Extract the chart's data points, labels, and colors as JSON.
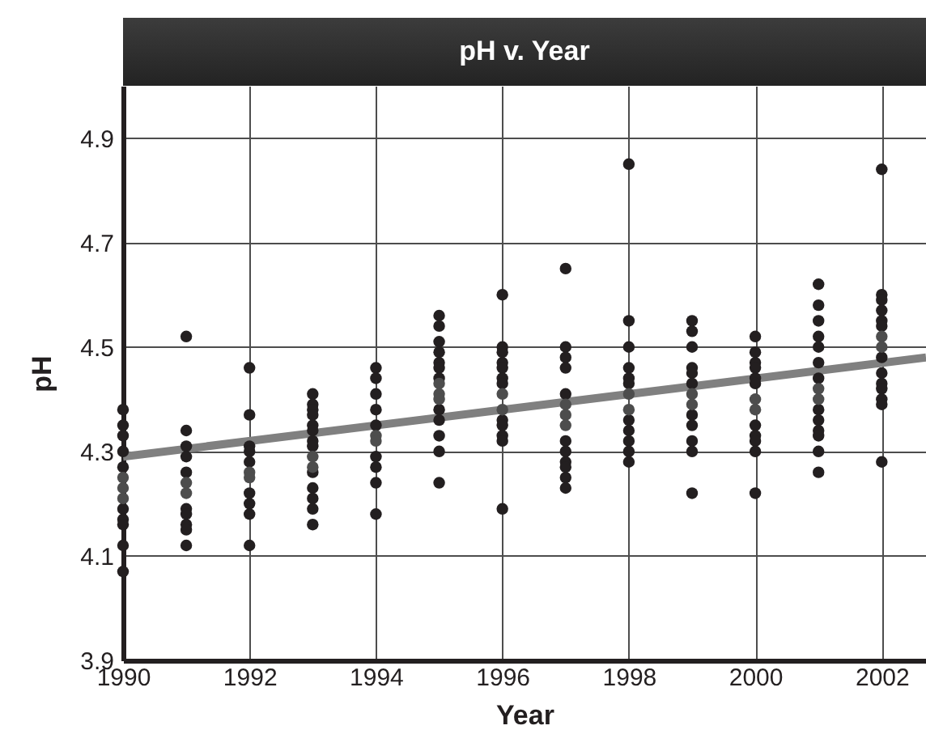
{
  "chart_data": {
    "type": "scatter",
    "title": "pH v. Year",
    "xlabel": "Year",
    "ylabel": "pH",
    "xlim": [
      1990,
      2002.7
    ],
    "xticks": [
      1990,
      1992,
      1994,
      1996,
      1998,
      2000,
      2002
    ],
    "ylim": [
      3.9,
      5.0
    ],
    "yticks": [
      3.9,
      4.1,
      4.3,
      4.5,
      4.7,
      4.9
    ],
    "grid": true,
    "marker": "circle",
    "series": [
      {
        "type": "line",
        "marker": "none",
        "color": "#808080",
        "x": [
          1990,
          2002.7
        ],
        "values": [
          4.29,
          4.48
        ]
      },
      {
        "color": "#231f20",
        "x": [
          1990,
          1990,
          1990,
          1990,
          1990,
          1990,
          1990,
          1990,
          1990,
          1990,
          1991,
          1991,
          1991,
          1991,
          1991,
          1991,
          1991,
          1991,
          1991,
          1991,
          1992,
          1992,
          1992,
          1992,
          1992,
          1992,
          1992,
          1992,
          1992,
          1993,
          1993,
          1993,
          1993,
          1993,
          1993,
          1993,
          1993,
          1993,
          1993,
          1993,
          1993,
          1993,
          1994,
          1994,
          1994,
          1994,
          1994,
          1994,
          1994,
          1994,
          1994,
          1995,
          1995,
          1995,
          1995,
          1995,
          1995,
          1995,
          1995,
          1995,
          1995,
          1995,
          1995,
          1996,
          1996,
          1996,
          1996,
          1996,
          1996,
          1996,
          1996,
          1996,
          1996,
          1996,
          1996,
          1997,
          1997,
          1997,
          1997,
          1997,
          1997,
          1997,
          1997,
          1997,
          1997,
          1997,
          1998,
          1998,
          1998,
          1998,
          1998,
          1998,
          1998,
          1998,
          1998,
          1998,
          1998,
          1999,
          1999,
          1999,
          1999,
          1999,
          1999,
          1999,
          1999,
          1999,
          1999,
          1999,
          2000,
          2000,
          2000,
          2000,
          2000,
          2000,
          2000,
          2000,
          2000,
          2000,
          2000,
          2001,
          2001,
          2001,
          2001,
          2001,
          2001,
          2001,
          2001,
          2001,
          2001,
          2001,
          2001,
          2001,
          2002,
          2002,
          2002,
          2002,
          2002,
          2002,
          2002,
          2002,
          2002,
          2002,
          2002,
          2002,
          2002
        ],
        "values": [
          4.38,
          4.35,
          4.33,
          4.3,
          4.27,
          4.19,
          4.17,
          4.16,
          4.12,
          4.07,
          4.52,
          4.34,
          4.31,
          4.29,
          4.26,
          4.19,
          4.18,
          4.16,
          4.15,
          4.12,
          4.46,
          4.37,
          4.31,
          4.3,
          4.28,
          4.22,
          4.2,
          4.18,
          4.12,
          4.41,
          4.39,
          4.38,
          4.37,
          4.35,
          4.34,
          4.32,
          4.31,
          4.26,
          4.23,
          4.21,
          4.19,
          4.16,
          4.46,
          4.44,
          4.41,
          4.38,
          4.35,
          4.29,
          4.27,
          4.24,
          4.18,
          4.56,
          4.54,
          4.51,
          4.49,
          4.47,
          4.46,
          4.44,
          4.38,
          4.36,
          4.33,
          4.3,
          4.24,
          4.6,
          4.5,
          4.49,
          4.47,
          4.46,
          4.44,
          4.43,
          4.36,
          4.35,
          4.33,
          4.32,
          4.19,
          4.65,
          4.5,
          4.48,
          4.46,
          4.41,
          4.32,
          4.3,
          4.28,
          4.27,
          4.25,
          4.23,
          4.85,
          4.55,
          4.5,
          4.46,
          4.44,
          4.43,
          4.36,
          4.34,
          4.32,
          4.3,
          4.28,
          4.55,
          4.53,
          4.5,
          4.46,
          4.45,
          4.43,
          4.37,
          4.35,
          4.32,
          4.3,
          4.22,
          4.52,
          4.49,
          4.47,
          4.46,
          4.44,
          4.43,
          4.35,
          4.33,
          4.32,
          4.3,
          4.22,
          4.62,
          4.58,
          4.55,
          4.52,
          4.5,
          4.47,
          4.44,
          4.38,
          4.36,
          4.34,
          4.33,
          4.3,
          4.26,
          4.84,
          4.6,
          4.59,
          4.57,
          4.55,
          4.54,
          4.48,
          4.45,
          4.43,
          4.42,
          4.4,
          4.39,
          4.28
        ]
      },
      {
        "color": "#4d4d4d",
        "x": [
          1990,
          1990,
          1990,
          1991,
          1991,
          1992,
          1992,
          1993,
          1993,
          1994,
          1994,
          1995,
          1995,
          1995,
          1996,
          1996,
          1997,
          1997,
          1997,
          1998,
          1998,
          1999,
          1999,
          2000,
          2000,
          2001,
          2001,
          2002,
          2002
        ],
        "values": [
          4.25,
          4.23,
          4.21,
          4.24,
          4.22,
          4.26,
          4.25,
          4.29,
          4.27,
          4.33,
          4.32,
          4.43,
          4.41,
          4.4,
          4.41,
          4.38,
          4.39,
          4.37,
          4.35,
          4.41,
          4.38,
          4.41,
          4.39,
          4.4,
          4.38,
          4.42,
          4.4,
          4.52,
          4.5
        ]
      }
    ]
  }
}
